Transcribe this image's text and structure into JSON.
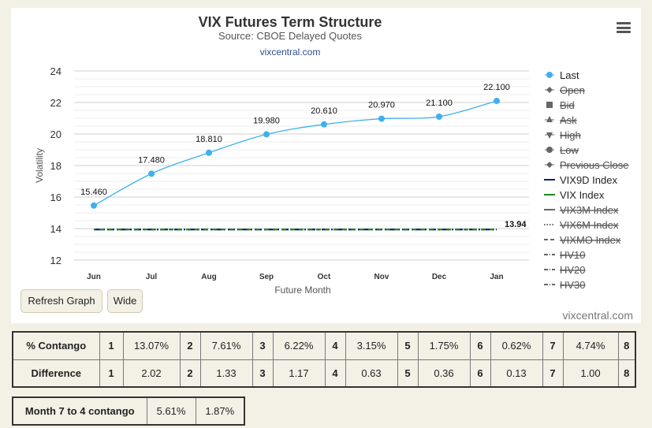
{
  "chart_data": {
    "type": "line",
    "title": "VIX Futures Term Structure",
    "subtitle": "Source: CBOE Delayed Quotes",
    "link": "vixcentral.com",
    "xlabel": "Future Month",
    "ylabel": "Volatility",
    "ylim": [
      12,
      24
    ],
    "yticks": [
      12,
      14,
      16,
      18,
      20,
      22,
      24
    ],
    "categories": [
      "Jun",
      "Jul",
      "Aug",
      "Sep",
      "Oct",
      "Nov",
      "Dec",
      "Jan"
    ],
    "grid": true,
    "legend_position": "right",
    "series": [
      {
        "name": "Last",
        "values": [
          15.46,
          17.48,
          18.81,
          19.98,
          20.61,
          20.97,
          21.1,
          22.1
        ],
        "labels": [
          "15.460",
          "17.480",
          "18.810",
          "19.980",
          "20.610",
          "20.970",
          "21.100",
          "22.100"
        ],
        "color": "#3fb0ee"
      },
      {
        "name": "VIX9D Index",
        "values": [
          13.94,
          13.94,
          13.94,
          13.94,
          13.94,
          13.94,
          13.94,
          13.94
        ],
        "color": "#0a1f73"
      },
      {
        "name": "VIX Index",
        "values": [
          13.94,
          13.94,
          13.94,
          13.94,
          13.94,
          13.94,
          13.94,
          13.94
        ],
        "end_label": "13.94",
        "color": "#1b8a1b"
      }
    ],
    "legend": [
      {
        "name": "Last",
        "symbol": "circle-line",
        "hidden": false,
        "color": "#3fb0ee"
      },
      {
        "name": "Open",
        "symbol": "diamond",
        "hidden": true,
        "color": "#666666"
      },
      {
        "name": "Bid",
        "symbol": "square",
        "hidden": true,
        "color": "#666666"
      },
      {
        "name": "Ask",
        "symbol": "triangle",
        "hidden": true,
        "color": "#666666"
      },
      {
        "name": "High",
        "symbol": "triangle-down",
        "hidden": true,
        "color": "#666666"
      },
      {
        "name": "Low",
        "symbol": "circle",
        "hidden": true,
        "color": "#666666"
      },
      {
        "name": "Previous Close",
        "symbol": "diamond",
        "hidden": true,
        "color": "#666666"
      },
      {
        "name": "VIX9D Index",
        "symbol": "line",
        "hidden": false,
        "color": "#0a1f73"
      },
      {
        "name": "VIX Index",
        "symbol": "line",
        "hidden": false,
        "color": "#1b8a1b"
      },
      {
        "name": "VIX3M Index",
        "symbol": "line",
        "hidden": true,
        "color": "#666666"
      },
      {
        "name": "VIX6M Index",
        "symbol": "dotted",
        "hidden": true,
        "color": "#666666"
      },
      {
        "name": "VIXMO Index",
        "symbol": "dashed",
        "hidden": true,
        "color": "#666666"
      },
      {
        "name": "HV10",
        "symbol": "dashdot",
        "hidden": true,
        "color": "#666666"
      },
      {
        "name": "HV20",
        "symbol": "dashdot",
        "hidden": true,
        "color": "#666666"
      },
      {
        "name": "HV30",
        "symbol": "dashdot",
        "hidden": true,
        "color": "#666666"
      }
    ]
  },
  "buttons": {
    "refresh": "Refresh Graph",
    "wide": "Wide"
  },
  "watermark": "vixcentral.com",
  "contango_table": {
    "rows": [
      {
        "label": "% Contango",
        "cells": [
          "1",
          "13.07%",
          "2",
          "7.61%",
          "3",
          "6.22%",
          "4",
          "3.15%",
          "5",
          "1.75%",
          "6",
          "0.62%",
          "7",
          "4.74%",
          "8"
        ]
      },
      {
        "label": "Difference",
        "cells": [
          "1",
          "2.02",
          "2",
          "1.33",
          "3",
          "1.17",
          "4",
          "0.63",
          "5",
          "0.36",
          "6",
          "0.13",
          "7",
          "1.00",
          "8"
        ]
      }
    ]
  },
  "month_table": {
    "label": "Month 7 to 4 contango",
    "values": [
      "5.61%",
      "1.87%"
    ]
  }
}
